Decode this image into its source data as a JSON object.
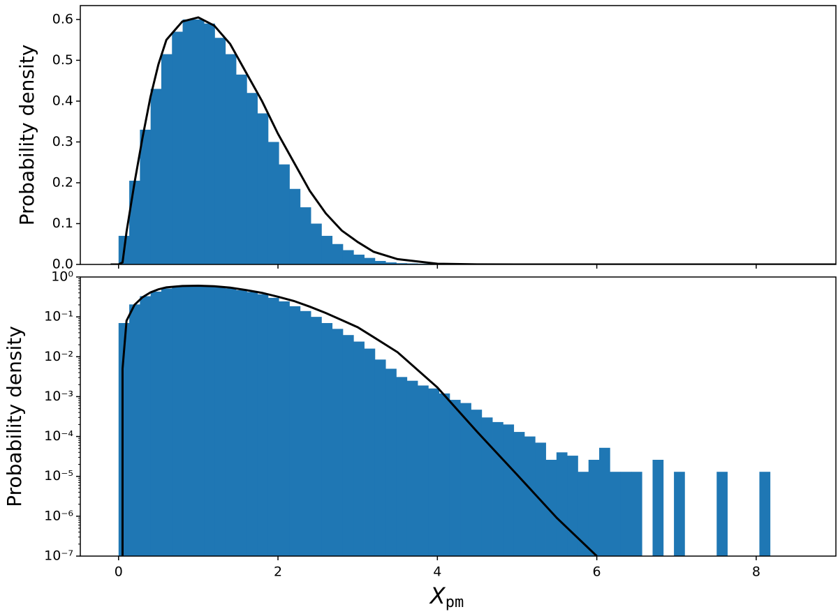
{
  "chart_data": [
    {
      "type": "histogram",
      "ylabel": "Probability density",
      "bins": [
        0,
        0.134,
        0.268,
        0.402,
        0.536,
        0.67,
        0.804,
        0.938,
        1.072,
        1.206,
        1.34,
        1.474,
        1.608,
        1.742,
        1.876,
        2.01,
        2.144,
        2.278,
        2.412,
        2.546,
        2.68,
        2.814,
        2.948,
        3.082,
        3.216,
        3.35,
        3.484,
        3.618,
        3.752,
        3.886,
        4.02,
        4.154,
        4.288,
        4.422,
        4.556,
        4.69,
        4.824,
        4.958,
        5.092,
        5.226,
        5.36,
        5.494,
        5.628,
        5.762,
        5.896,
        6.03,
        6.164,
        6.298,
        6.432,
        6.566,
        6.7,
        6.834,
        6.968,
        7.102,
        7.236,
        7.37,
        7.504,
        7.638,
        7.772,
        7.906,
        8.04,
        8.174
      ],
      "values": [
        0.07,
        0.205,
        0.33,
        0.43,
        0.515,
        0.57,
        0.6,
        0.6,
        0.59,
        0.555,
        0.515,
        0.465,
        0.42,
        0.37,
        0.3,
        0.245,
        0.185,
        0.14,
        0.1,
        0.07,
        0.05,
        0.035,
        0.024,
        0.016,
        0.0085,
        0.005,
        0.0031,
        0.0025,
        0.0019,
        0.0016,
        0.0012,
        0.00083,
        0.00069,
        0.00047,
        0.0003,
        0.00023,
        0.0002,
        0.00013,
        0.0001,
        7e-05,
        2.6e-05,
        4e-05,
        3.3e-05,
        1.3e-05,
        2.6e-05,
        5.2e-05,
        1.3e-05,
        1.3e-05,
        1.3e-05,
        0,
        2.6e-05,
        0,
        1.3e-05,
        0,
        0,
        0,
        1.3e-05,
        0,
        0,
        0,
        1.3e-05
      ],
      "color": "#1f77b4",
      "curve": {
        "color": "#000000",
        "x": [
          -0.1,
          0,
          0.05,
          0.1,
          0.2,
          0.3,
          0.4,
          0.5,
          0.6,
          0.8,
          1.0,
          1.2,
          1.4,
          1.6,
          1.8,
          2.0,
          2.2,
          2.4,
          2.6,
          2.8,
          3.0,
          3.2,
          3.5,
          4.0,
          4.5,
          5.0,
          5.5,
          6.0,
          7.0,
          9.0
        ],
        "values": [
          0,
          0,
          0.005,
          0.08,
          0.2,
          0.31,
          0.41,
          0.49,
          0.55,
          0.595,
          0.605,
          0.585,
          0.54,
          0.47,
          0.4,
          0.32,
          0.25,
          0.18,
          0.125,
          0.083,
          0.055,
          0.031,
          0.013,
          0.0017,
          0.00013,
          1.1e-05,
          9e-07,
          1e-07,
          0,
          0
        ]
      },
      "xlim": [
        -0.48,
        9.0
      ],
      "ylim": [
        0,
        0.634
      ],
      "log": false,
      "yticks": [
        {
          "value": 0,
          "label": "0.0"
        },
        0.1,
        0.2,
        0.3,
        0.4,
        0.5,
        0.6
      ]
    },
    {
      "type": "histogram",
      "ylabel": "Probability density",
      "xlabel": "X",
      "xlabel_sub": "pm",
      "bins": [
        0,
        0.134,
        0.268,
        0.402,
        0.536,
        0.67,
        0.804,
        0.938,
        1.072,
        1.206,
        1.34,
        1.474,
        1.608,
        1.742,
        1.876,
        2.01,
        2.144,
        2.278,
        2.412,
        2.546,
        2.68,
        2.814,
        2.948,
        3.082,
        3.216,
        3.35,
        3.484,
        3.618,
        3.752,
        3.886,
        4.02,
        4.154,
        4.288,
        4.422,
        4.556,
        4.69,
        4.824,
        4.958,
        5.092,
        5.226,
        5.36,
        5.494,
        5.628,
        5.762,
        5.896,
        6.03,
        6.164,
        6.298,
        6.432,
        6.566,
        6.7,
        6.834,
        6.968,
        7.102,
        7.236,
        7.37,
        7.504,
        7.638,
        7.772,
        7.906,
        8.04,
        8.174
      ],
      "values": [
        0.07,
        0.205,
        0.33,
        0.43,
        0.515,
        0.57,
        0.6,
        0.6,
        0.59,
        0.555,
        0.515,
        0.465,
        0.42,
        0.37,
        0.3,
        0.245,
        0.185,
        0.14,
        0.1,
        0.07,
        0.05,
        0.035,
        0.024,
        0.016,
        0.0085,
        0.005,
        0.0031,
        0.0025,
        0.0019,
        0.0016,
        0.0012,
        0.00083,
        0.00069,
        0.00047,
        0.0003,
        0.00023,
        0.0002,
        0.00013,
        0.0001,
        7e-05,
        2.6e-05,
        4e-05,
        3.3e-05,
        1.3e-05,
        2.6e-05,
        5.2e-05,
        1.3e-05,
        1.3e-05,
        1.3e-05,
        0,
        2.6e-05,
        0,
        1.3e-05,
        0,
        0,
        0,
        1.3e-05,
        0,
        0,
        0,
        1.3e-05
      ],
      "color": "#1f77b4",
      "curve": {
        "color": "#000000",
        "x": [
          0.05,
          0.05,
          0.1,
          0.2,
          0.3,
          0.4,
          0.5,
          0.6,
          0.8,
          1.0,
          1.2,
          1.4,
          1.6,
          1.8,
          2.0,
          2.2,
          2.4,
          2.6,
          2.8,
          3.0,
          3.2,
          3.5,
          4.0,
          4.5,
          5.0,
          5.5,
          6.0
        ],
        "values": [
          1e-07,
          0.005,
          0.08,
          0.2,
          0.31,
          0.41,
          0.49,
          0.55,
          0.595,
          0.605,
          0.585,
          0.54,
          0.47,
          0.4,
          0.32,
          0.25,
          0.18,
          0.125,
          0.083,
          0.055,
          0.031,
          0.013,
          0.0017,
          0.00013,
          1.1e-05,
          9e-07,
          1e-07
        ]
      },
      "xlim": [
        -0.48,
        9.0
      ],
      "ylim": [
        1e-07,
        1
      ],
      "log": true,
      "xticks": [
        0,
        2,
        4,
        6,
        8
      ],
      "yticks": [
        {
          "value": 1e-07,
          "label": "10⁻⁷"
        },
        {
          "value": 1e-06,
          "label": "10⁻⁶"
        },
        {
          "value": 1e-05,
          "label": "10⁻⁵"
        },
        {
          "value": 0.0001,
          "label": "10⁻⁴"
        },
        {
          "value": 0.001,
          "label": "10⁻³"
        },
        {
          "value": 0.01,
          "label": "10⁻²"
        },
        {
          "value": 0.1,
          "label": "10⁻¹"
        },
        {
          "value": 1,
          "label": "10⁰"
        }
      ]
    }
  ]
}
